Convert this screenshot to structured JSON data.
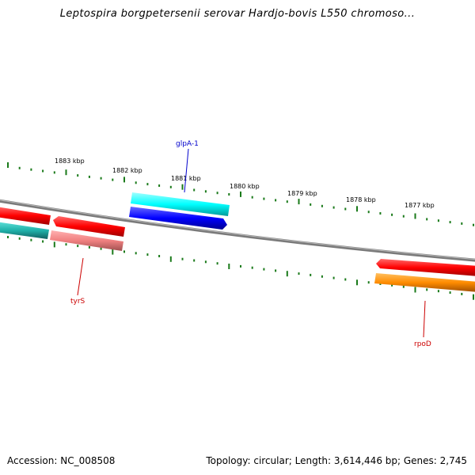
{
  "title": "Leptospira borgpetersenii serovar Hardjo-bovis L550 chromoso...",
  "footer": {
    "accession": "Accession: NC_008508",
    "summary": "Topology: circular; Length: 3,614,446 bp; Genes: 2,745"
  },
  "ticks": [
    "1883 kbp",
    "1882 kbp",
    "1881 kbp",
    "1880 kbp",
    "1879 kbp",
    "1878 kbp",
    "1877 kbp"
  ],
  "genes": {
    "glpA": "glpA-1",
    "tyrS": "tyrS",
    "rpoD": "rpoD"
  },
  "colors": {
    "forward_cds": "#ff0000",
    "reverse_cds_light": "#f08080",
    "cyan_feature": "#00ffff",
    "blue_feature": "#0000ff",
    "orange_feature": "#ff8c00",
    "teal_feature": "#20b2aa",
    "backbone": "#808080",
    "tick": "#1a7a1a",
    "label_blue": "#0000cc",
    "label_red": "#cc0000"
  }
}
